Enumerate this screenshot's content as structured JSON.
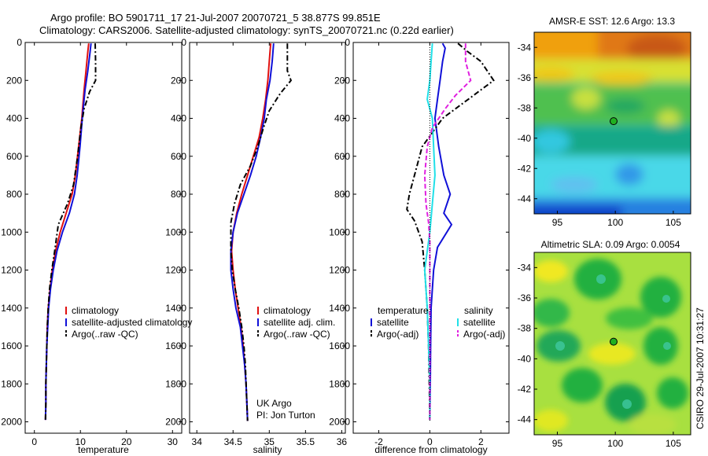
{
  "header": {
    "line1": "Argo profile: BO 5901711_17 21-Jul-2007 20070721_5 38.877S 99.851E",
    "line2": "Climatology: CARS2006. Satellite-adjusted climatology: synTS_20070721.nc (0.22d earlier)"
  },
  "side_label": "CSIRO 29-Jul-2007 10:31:27",
  "colors": {
    "red": "#e01010",
    "blue": "#1010d8",
    "black": "#000000",
    "cyan": "#20e0e8",
    "magenta": "#e020e0"
  },
  "chart_data": [
    {
      "type": "line",
      "xlabel": "temperature",
      "xlim": [
        -2,
        32
      ],
      "xticks": [
        0,
        10,
        20,
        30
      ],
      "ylim": [
        0,
        2060
      ],
      "yticks": [
        0,
        200,
        400,
        600,
        800,
        1000,
        1200,
        1400,
        1600,
        1800,
        2000
      ],
      "legend_items": [
        "climatology",
        "satellite-adjusted climatology",
        "Argo(..raw -QC)"
      ],
      "series": [
        {
          "name": "climatology",
          "color": "red",
          "dash": "solid",
          "points": [
            [
              11.8,
              5
            ],
            [
              11.6,
              50
            ],
            [
              11.2,
              150
            ],
            [
              10.8,
              250
            ],
            [
              10.3,
              400
            ],
            [
              9.6,
              550
            ],
            [
              8.9,
              700
            ],
            [
              8.2,
              800
            ],
            [
              6.9,
              900
            ],
            [
              5.6,
              1000
            ],
            [
              4.6,
              1100
            ],
            [
              3.9,
              1200
            ],
            [
              3.4,
              1300
            ],
            [
              3.0,
              1400
            ],
            [
              2.8,
              1500
            ],
            [
              2.7,
              1600
            ],
            [
              2.6,
              1700
            ],
            [
              2.5,
              1800
            ],
            [
              2.5,
              1900
            ],
            [
              2.4,
              1990
            ]
          ]
        },
        {
          "name": "satellite-adjusted climatology",
          "color": "blue",
          "dash": "solid",
          "points": [
            [
              12.3,
              5
            ],
            [
              12.1,
              50
            ],
            [
              11.6,
              150
            ],
            [
              11.0,
              250
            ],
            [
              10.4,
              400
            ],
            [
              9.9,
              550
            ],
            [
              9.3,
              700
            ],
            [
              8.7,
              800
            ],
            [
              7.6,
              900
            ],
            [
              6.1,
              1000
            ],
            [
              4.9,
              1100
            ],
            [
              4.1,
              1200
            ],
            [
              3.5,
              1300
            ],
            [
              3.1,
              1400
            ],
            [
              2.9,
              1500
            ],
            [
              2.7,
              1600
            ],
            [
              2.6,
              1700
            ],
            [
              2.5,
              1800
            ],
            [
              2.5,
              1900
            ],
            [
              2.4,
              1990
            ]
          ]
        },
        {
          "name": "Argo(..raw -QC)",
          "color": "black",
          "dash": "dashdot",
          "points": [
            [
              13.2,
              5
            ],
            [
              13.3,
              100
            ],
            [
              13.3,
              200
            ],
            [
              12.0,
              260
            ],
            [
              10.8,
              350
            ],
            [
              10.1,
              450
            ],
            [
              9.4,
              600
            ],
            [
              8.5,
              750
            ],
            [
              7.2,
              850
            ],
            [
              5.2,
              960
            ],
            [
              4.4,
              1100
            ],
            [
              3.8,
              1200
            ],
            [
              3.3,
              1300
            ],
            [
              3.0,
              1400
            ],
            [
              2.8,
              1500
            ],
            [
              2.7,
              1600
            ],
            [
              2.6,
              1700
            ],
            [
              2.5,
              1800
            ],
            [
              2.5,
              1900
            ],
            [
              2.4,
              1990
            ]
          ]
        }
      ]
    },
    {
      "type": "line",
      "xlabel": "salinity",
      "xlim": [
        33.9,
        36.05
      ],
      "xticks": [
        34,
        34.5,
        35,
        35.5,
        36
      ],
      "xtick_labels": [
        "34",
        "34.5",
        "35",
        "35.5",
        "36"
      ],
      "ylim": [
        0,
        2060
      ],
      "yticks": [
        0,
        200,
        400,
        600,
        800,
        1000,
        1200,
        1400,
        1600,
        1800,
        2000
      ],
      "legend_items": [
        "climatology",
        "satellite adj. clim.",
        "Argo(..raw -QC)"
      ],
      "annotation": [
        "UK Argo",
        "PI: Jon Turton"
      ],
      "series": [
        {
          "name": "climatology",
          "color": "red",
          "dash": "solid",
          "points": [
            [
              35.02,
              5
            ],
            [
              35.0,
              100
            ],
            [
              34.98,
              200
            ],
            [
              34.95,
              300
            ],
            [
              34.91,
              400
            ],
            [
              34.86,
              500
            ],
            [
              34.78,
              600
            ],
            [
              34.7,
              700
            ],
            [
              34.62,
              800
            ],
            [
              34.55,
              900
            ],
            [
              34.5,
              1000
            ],
            [
              34.48,
              1100
            ],
            [
              34.5,
              1200
            ],
            [
              34.53,
              1300
            ],
            [
              34.57,
              1400
            ],
            [
              34.61,
              1500
            ],
            [
              34.64,
              1600
            ],
            [
              34.66,
              1700
            ],
            [
              34.68,
              1800
            ],
            [
              34.69,
              1900
            ],
            [
              34.7,
              1995
            ]
          ]
        },
        {
          "name": "satellite adj. clim.",
          "color": "blue",
          "dash": "solid",
          "points": [
            [
              35.06,
              5
            ],
            [
              35.04,
              100
            ],
            [
              35.01,
              200
            ],
            [
              34.96,
              300
            ],
            [
              34.93,
              400
            ],
            [
              34.88,
              500
            ],
            [
              34.82,
              600
            ],
            [
              34.74,
              700
            ],
            [
              34.65,
              800
            ],
            [
              34.56,
              900
            ],
            [
              34.5,
              1000
            ],
            [
              34.47,
              1100
            ],
            [
              34.47,
              1200
            ],
            [
              34.5,
              1300
            ],
            [
              34.54,
              1400
            ],
            [
              34.6,
              1500
            ],
            [
              34.63,
              1600
            ],
            [
              34.66,
              1700
            ],
            [
              34.68,
              1800
            ],
            [
              34.69,
              1900
            ],
            [
              34.7,
              1995
            ]
          ]
        },
        {
          "name": "Argo(..raw -QC)",
          "color": "black",
          "dash": "dashdot",
          "points": [
            [
              35.25,
              5
            ],
            [
              35.25,
              150
            ],
            [
              35.3,
              200
            ],
            [
              35.15,
              270
            ],
            [
              35.0,
              360
            ],
            [
              34.92,
              450
            ],
            [
              34.84,
              550
            ],
            [
              34.74,
              650
            ],
            [
              34.6,
              750
            ],
            [
              34.52,
              850
            ],
            [
              34.47,
              950
            ],
            [
              34.47,
              1100
            ],
            [
              34.49,
              1200
            ],
            [
              34.53,
              1300
            ],
            [
              34.58,
              1400
            ],
            [
              34.62,
              1500
            ],
            [
              34.65,
              1600
            ],
            [
              34.67,
              1700
            ],
            [
              34.68,
              1800
            ],
            [
              34.69,
              1900
            ],
            [
              34.7,
              1995
            ]
          ]
        }
      ]
    },
    {
      "type": "line",
      "xlabel": "difference from climatology",
      "xlim": [
        -3,
        3.1
      ],
      "xticks": [
        -2,
        0,
        2
      ],
      "ylim": [
        0,
        2060
      ],
      "yticks": [
        0,
        200,
        400,
        600,
        800,
        1000,
        1200,
        1400,
        1600,
        1800,
        2000
      ],
      "legend_groups": [
        {
          "header": "temperature",
          "items": [
            "satellite",
            "Argo(-adj)"
          ]
        },
        {
          "header": "salinity",
          "items": [
            "satellite",
            "Argo(-adj)"
          ]
        }
      ],
      "series": [
        {
          "name": "satellite (temperature)",
          "color": "blue",
          "dash": "solid",
          "points": [
            [
              0.5,
              5
            ],
            [
              0.6,
              30
            ],
            [
              0.5,
              100
            ],
            [
              0.4,
              200
            ],
            [
              0.3,
              300
            ],
            [
              0.2,
              400
            ],
            [
              0.35,
              550
            ],
            [
              0.55,
              700
            ],
            [
              0.8,
              800
            ],
            [
              0.55,
              900
            ],
            [
              0.85,
              960
            ],
            [
              0.3,
              1080
            ],
            [
              0.15,
              1200
            ],
            [
              0.05,
              1400
            ],
            [
              0.03,
              1600
            ],
            [
              0.02,
              1800
            ],
            [
              0.0,
              1990
            ]
          ]
        },
        {
          "name": "Argo(-adj) (temperature)",
          "color": "black",
          "dash": "dashdot",
          "points": [
            [
              1.1,
              5
            ],
            [
              1.5,
              50
            ],
            [
              2.0,
              100
            ],
            [
              2.5,
              200
            ],
            [
              1.5,
              300
            ],
            [
              0.5,
              400
            ],
            [
              -0.3,
              550
            ],
            [
              -0.6,
              700
            ],
            [
              -0.8,
              800
            ],
            [
              -0.9,
              880
            ],
            [
              -0.6,
              940
            ],
            [
              -0.3,
              1050
            ],
            [
              -0.2,
              1200
            ],
            [
              -0.1,
              1400
            ],
            [
              -0.05,
              1600
            ],
            [
              -0.02,
              1800
            ],
            [
              0.0,
              1990
            ]
          ]
        },
        {
          "name": "satellite (salinity)",
          "color": "cyan",
          "dash": "solid",
          "points": [
            [
              0.1,
              5
            ],
            [
              0.05,
              100
            ],
            [
              0.0,
              200
            ],
            [
              -0.1,
              300
            ],
            [
              0.1,
              400
            ],
            [
              0.15,
              550
            ],
            [
              0.2,
              700
            ],
            [
              0.1,
              850
            ],
            [
              0.0,
              1000
            ],
            [
              -0.1,
              1100
            ],
            [
              -0.2,
              1200
            ],
            [
              -0.1,
              1400
            ],
            [
              -0.05,
              1600
            ],
            [
              0.0,
              1800
            ],
            [
              0.0,
              1990
            ]
          ]
        },
        {
          "name": "Argo(-adj) (salinity)",
          "color": "magenta",
          "dash": "dashed",
          "points": [
            [
              1.4,
              5
            ],
            [
              1.4,
              100
            ],
            [
              1.6,
              200
            ],
            [
              1.0,
              280
            ],
            [
              0.6,
              350
            ],
            [
              0.1,
              450
            ],
            [
              -0.1,
              550
            ],
            [
              -0.2,
              700
            ],
            [
              -0.15,
              850
            ],
            [
              -0.05,
              950
            ],
            [
              0.0,
              1050
            ],
            [
              0.0,
              1200
            ],
            [
              0.0,
              1990
            ]
          ]
        },
        {
          "name": "zero",
          "color": "black",
          "dash": "dotted",
          "points": [
            [
              0,
              0
            ],
            [
              0,
              2000
            ]
          ]
        }
      ]
    },
    {
      "type": "heatmap",
      "title": "AMSR-E SST: 12.6 Argo: 13.3",
      "xlim": [
        93,
        106.5
      ],
      "ylim": [
        -45,
        -33
      ],
      "xticks": [
        95,
        100,
        105
      ],
      "yticks": [
        -44,
        -42,
        -40,
        -38,
        -36,
        -34
      ],
      "marker": {
        "lon": 99.851,
        "lat": -38.877,
        "fill": "#20b020"
      },
      "colormap": "jet"
    },
    {
      "type": "heatmap",
      "title": "Altimetric SLA: 0.09 Argo: 0.0054",
      "xlim": [
        93,
        106.5
      ],
      "ylim": [
        -45,
        -33
      ],
      "xticks": [
        95,
        100,
        105
      ],
      "yticks": [
        -44,
        -42,
        -40,
        -38,
        -36,
        -34
      ],
      "marker": {
        "lon": 99.851,
        "lat": -38.877,
        "fill": "#20b020"
      },
      "colormap": "jet"
    }
  ]
}
